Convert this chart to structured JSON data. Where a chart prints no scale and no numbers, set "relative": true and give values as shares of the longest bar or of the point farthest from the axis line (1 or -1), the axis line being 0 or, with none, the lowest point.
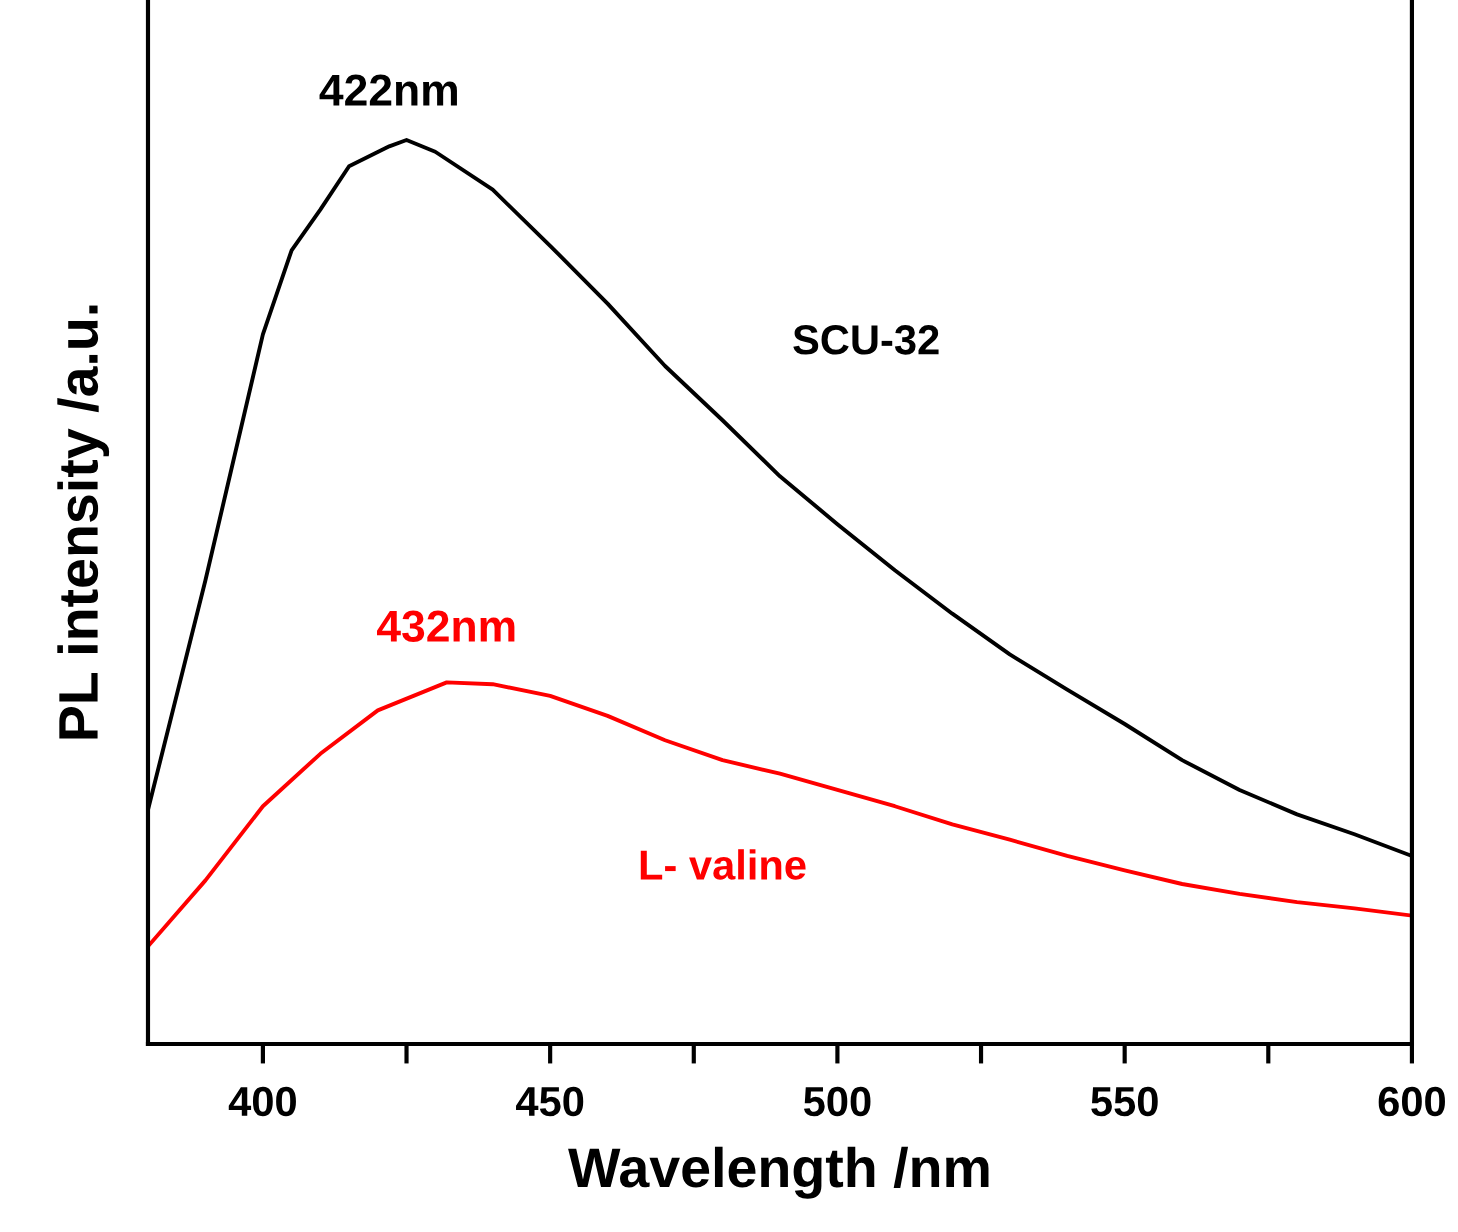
{
  "chart_data": {
    "type": "line",
    "relative": true,
    "xlabel": "Wavelength /nm",
    "ylabel": "PL intensity /a.u.",
    "xlim": [
      380,
      600
    ],
    "xticks": [
      400,
      {
        "value": 425,
        "label": null
      },
      450,
      {
        "value": 475,
        "label": null
      },
      500,
      {
        "value": 525,
        "label": null
      },
      550,
      {
        "value": 575,
        "label": null
      },
      600
    ],
    "tick_labels": "x",
    "grid": false,
    "legend": false,
    "marker": "none",
    "line_style": "solid",
    "annotations": [
      {
        "text": "422nm",
        "x": 422,
        "y": 0.993
      },
      {
        "text": "432nm",
        "x": 432,
        "y": 0.4
      }
    ],
    "series": [
      {
        "name": "SCU-32",
        "color": "#000000",
        "x": [
          380,
          390,
          400,
          405,
          410,
          415,
          422,
          425,
          430,
          440,
          450,
          460,
          470,
          480,
          490,
          500,
          510,
          520,
          530,
          540,
          550,
          560,
          570,
          580,
          590,
          600
        ],
        "values": [
          0.259,
          0.513,
          0.785,
          0.878,
          0.923,
          0.971,
          0.993,
          1.0,
          0.987,
          0.945,
          0.883,
          0.819,
          0.75,
          0.69,
          0.628,
          0.575,
          0.524,
          0.476,
          0.431,
          0.392,
          0.354,
          0.314,
          0.281,
          0.254,
          0.232,
          0.208
        ]
      },
      {
        "name": "L- valine",
        "color": "#ff0000",
        "x": [
          380,
          390,
          400,
          410,
          420,
          432,
          440,
          450,
          460,
          470,
          480,
          490,
          500,
          510,
          520,
          530,
          540,
          550,
          560,
          570,
          580,
          590,
          600
        ],
        "values": [
          0.108,
          0.181,
          0.263,
          0.321,
          0.369,
          0.4,
          0.398,
          0.385,
          0.363,
          0.336,
          0.314,
          0.299,
          0.281,
          0.263,
          0.243,
          0.226,
          0.208,
          0.192,
          0.177,
          0.166,
          0.157,
          0.15,
          0.142
        ]
      }
    ]
  }
}
